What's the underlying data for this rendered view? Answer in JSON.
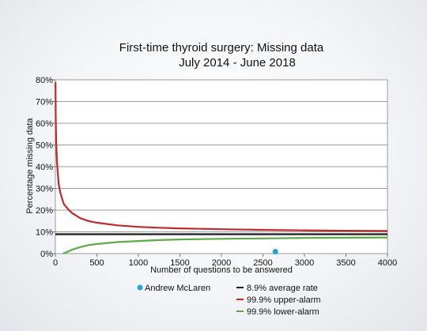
{
  "chart_data": {
    "type": "line",
    "title": "First-time thyroid surgery: Missing data",
    "subtitle": "July 2014 - June 2018",
    "xlabel": "Number of questions to be answered",
    "ylabel": "Percentage missing data",
    "xlim": [
      0,
      4000
    ],
    "ylim": [
      0,
      80
    ],
    "x_ticks": [
      "0",
      "500",
      "1000",
      "1500",
      "2000",
      "2500",
      "3000",
      "3500",
      "4000"
    ],
    "y_ticks": [
      "0%",
      "10%",
      "20%",
      "30%",
      "40%",
      "50%",
      "60%",
      "70%",
      "80%"
    ],
    "grid": true,
    "legend_position": "bottom",
    "average_rate": 8.9,
    "series": [
      {
        "name": "8.9% average rate",
        "color": "#1a1a1a",
        "x": [
          0,
          4000
        ],
        "y": [
          8.9,
          8.9
        ]
      },
      {
        "name": "99.9% upper-alarm",
        "color": "#c0282a",
        "x": [
          2,
          5,
          10,
          20,
          40,
          60,
          100,
          150,
          200,
          300,
          400,
          500,
          750,
          1000,
          1250,
          1500,
          2000,
          2500,
          3000,
          3500,
          4000
        ],
        "y": [
          79,
          62,
          52,
          42,
          32,
          28,
          23,
          20.5,
          18.7,
          16.3,
          15.0,
          14.2,
          13.0,
          12.3,
          11.9,
          11.6,
          11.2,
          10.9,
          10.7,
          10.5,
          10.4
        ]
      },
      {
        "name": "99.9% lower-alarm",
        "color": "#5cab45",
        "x": [
          95,
          150,
          200,
          300,
          400,
          500,
          750,
          1000,
          1250,
          1500,
          2000,
          2500,
          3000,
          3500,
          4000
        ],
        "y": [
          0,
          0.9,
          1.8,
          3.0,
          3.9,
          4.4,
          5.3,
          5.8,
          6.2,
          6.5,
          6.8,
          7.0,
          7.2,
          7.3,
          7.4
        ]
      }
    ],
    "points": [
      {
        "name": "Andrew McLaren",
        "color": "#1fa3e0",
        "x": 2650,
        "y": 0.9
      }
    ]
  }
}
